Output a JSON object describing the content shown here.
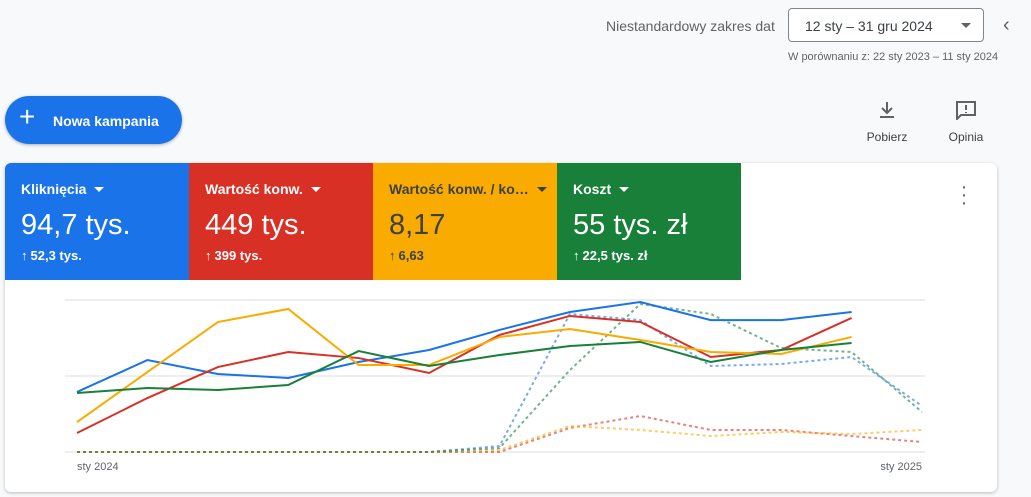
{
  "header": {
    "range_label": "Niestandardowy zakres dat",
    "range": "12 sty – 31 gru 2024",
    "compare": "W porównaniu z: 22 sty 2023 – 11 sty 2024"
  },
  "actions": {
    "new_campaign": "Nowa kampania",
    "download": "Pobierz",
    "feedback": "Opinia"
  },
  "chart_data": {
    "type": "line",
    "categories": [
      "sty 2024",
      null,
      null,
      null,
      null,
      null,
      null,
      null,
      null,
      null,
      null,
      null,
      "sty 2025"
    ],
    "ylim": [
      0,
      100
    ],
    "yticks": [
      0,
      50,
      100
    ],
    "grid": true,
    "series": [
      {
        "name": "Kliknięcia",
        "total": "94,7 tys.",
        "change": "52,3 tys.",
        "color": "#1a73e8",
        "values": [
          39.5,
          60.5,
          51.3,
          48.7,
          59.2,
          67.1,
          80.3,
          92.1,
          98.7,
          86.8,
          86.8,
          92.1,
          null
        ],
        "previous": [
          0,
          0,
          0,
          0,
          0,
          0,
          3.9,
          90.8,
          86.8,
          56.6,
          57.9,
          62.5,
          30.3
        ]
      },
      {
        "name": "Wartość konw.",
        "total": "449 tys.",
        "change": "399 tys.",
        "color": "#d93025",
        "values": [
          12.5,
          35.5,
          55.9,
          65.8,
          61.8,
          52,
          77,
          89.5,
          85.5,
          62.5,
          67.1,
          88.2,
          null
        ],
        "previous": [
          0,
          0,
          0,
          0,
          0,
          0,
          0,
          15.8,
          23.7,
          14.5,
          14.5,
          10.5,
          6.6
        ]
      },
      {
        "name": "Wartość konw. / ko…",
        "total": "8,17",
        "change": "6,63",
        "color": "#f9ab00",
        "values": [
          19.7,
          52.6,
          85.5,
          94.1,
          57.2,
          57.2,
          75.7,
          80.9,
          73.7,
          65.8,
          64.5,
          75.7,
          null
        ],
        "previous": [
          0,
          0,
          0,
          0,
          0,
          0,
          1.3,
          17.1,
          14.5,
          10.5,
          13.2,
          11.8,
          14.5
        ]
      },
      {
        "name": "Koszt",
        "total": "55 tys. zł",
        "change": "22,5 tys. zł",
        "color": "#188038",
        "values": [
          38.8,
          42.1,
          40.8,
          44.1,
          66.4,
          56.6,
          63.8,
          69.7,
          72.4,
          59.2,
          67.1,
          71.7,
          null
        ],
        "previous": [
          0,
          0,
          0,
          0,
          0,
          0,
          2.6,
          53.9,
          97.4,
          90.8,
          68.4,
          65.8,
          26.3
        ]
      }
    ]
  }
}
